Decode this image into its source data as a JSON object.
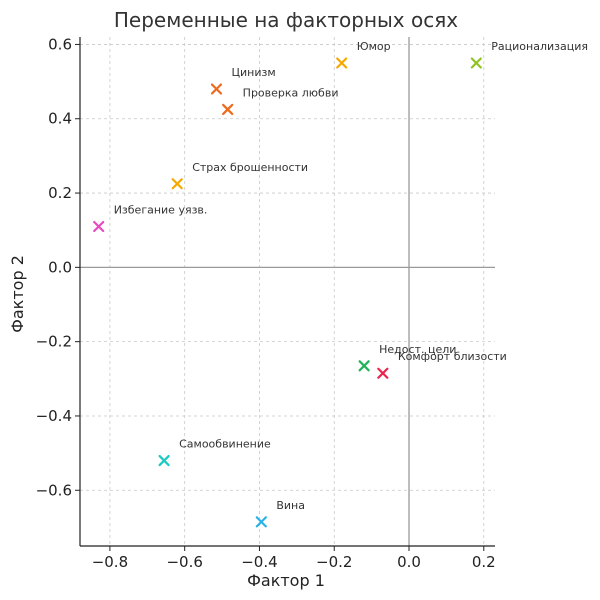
{
  "chart_data": {
    "type": "scatter",
    "title": "Переменные на факторных осях",
    "xlabel": "Фактор 1",
    "ylabel": "Фактор 2",
    "xlim": [
      -0.88,
      0.23
    ],
    "ylim": [
      -0.75,
      0.62
    ],
    "xticks": [
      -0.8,
      -0.6,
      -0.4,
      -0.2,
      0.0,
      0.2
    ],
    "xtick_labels": [
      "−0.8",
      "−0.6",
      "−0.4",
      "−0.2",
      "0.0",
      "0.2"
    ],
    "yticks": [
      -0.6,
      -0.4,
      -0.2,
      0.0,
      0.2,
      0.4,
      0.6
    ],
    "ytick_labels": [
      "−0.6",
      "−0.4",
      "−0.2",
      "0.0",
      "0.2",
      "0.4",
      "0.6"
    ],
    "grid": true,
    "marker": "x",
    "points": [
      {
        "label": "Юмор",
        "x": -0.18,
        "y": 0.55,
        "color": "#f5a800"
      },
      {
        "label": "Рационализация",
        "x": 0.18,
        "y": 0.55,
        "color": "#8fc31f"
      },
      {
        "label": "Цинизм",
        "x": -0.515,
        "y": 0.48,
        "color": "#ee6a1d"
      },
      {
        "label": "Проверка любви",
        "x": -0.485,
        "y": 0.425,
        "color": "#ee6a1d"
      },
      {
        "label": "Страх брошенности",
        "x": -0.62,
        "y": 0.225,
        "color": "#f5a800"
      },
      {
        "label": "Избегание уязв.",
        "x": -0.83,
        "y": 0.11,
        "color": "#e84ac0"
      },
      {
        "label": "Недост. цели",
        "x": -0.12,
        "y": -0.265,
        "color": "#1fb35a"
      },
      {
        "label": "Комфорт близости",
        "x": -0.07,
        "y": -0.285,
        "color": "#e8244f"
      },
      {
        "label": "Самообвинение",
        "x": -0.655,
        "y": -0.52,
        "color": "#1ac9c4"
      },
      {
        "label": "Вина",
        "x": -0.395,
        "y": -0.685,
        "color": "#2ab1e8"
      }
    ]
  }
}
